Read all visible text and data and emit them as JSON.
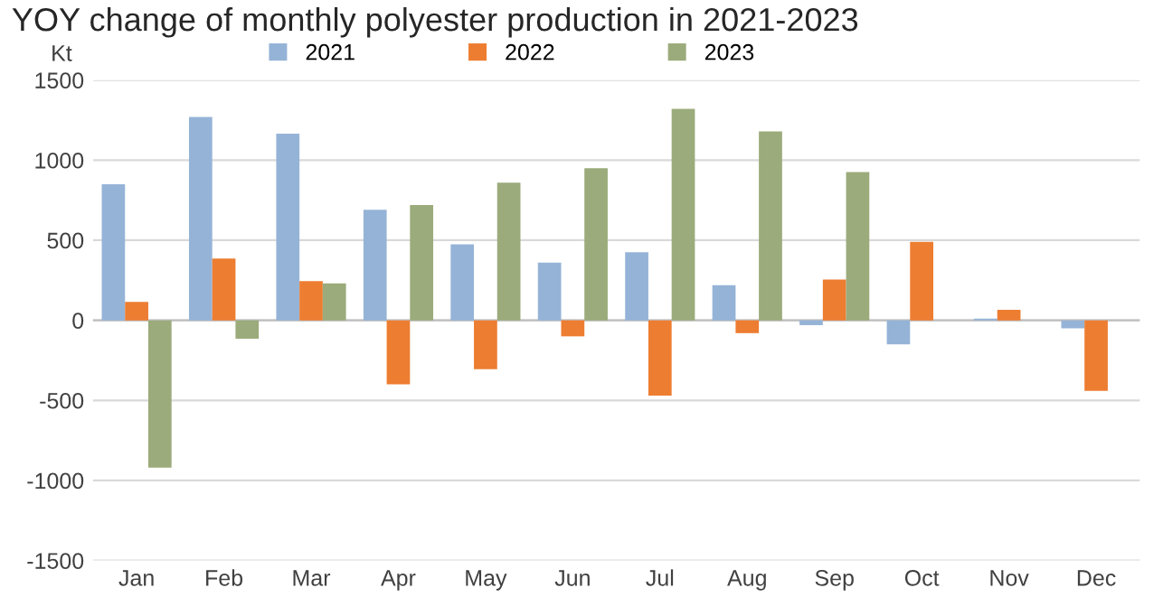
{
  "chart_data": {
    "type": "bar",
    "title": "YOY change of monthly polyester production in 2021-2023",
    "ylabel": "Kt",
    "categories": [
      "Jan",
      "Feb",
      "Mar",
      "Apr",
      "May",
      "Jun",
      "Jul",
      "Aug",
      "Sep",
      "Oct",
      "Nov",
      "Dec"
    ],
    "series": [
      {
        "name": "2021",
        "color": "#95b3d7",
        "values": [
          850,
          1270,
          1165,
          690,
          475,
          360,
          425,
          220,
          -30,
          -150,
          10,
          -50
        ]
      },
      {
        "name": "2022",
        "color": "#ed7d31",
        "values": [
          115,
          385,
          245,
          -400,
          -305,
          -100,
          -470,
          -80,
          255,
          490,
          65,
          -440
        ]
      },
      {
        "name": "2023",
        "color": "#9bab7b",
        "values": [
          -920,
          -115,
          230,
          720,
          860,
          950,
          1320,
          1180,
          925,
          null,
          null,
          null
        ]
      }
    ],
    "ylim": [
      -1500,
      1500
    ],
    "yticks": [
      -1500,
      -1000,
      -500,
      0,
      500,
      1000,
      1500
    ],
    "grid": "y",
    "legend": "top"
  }
}
